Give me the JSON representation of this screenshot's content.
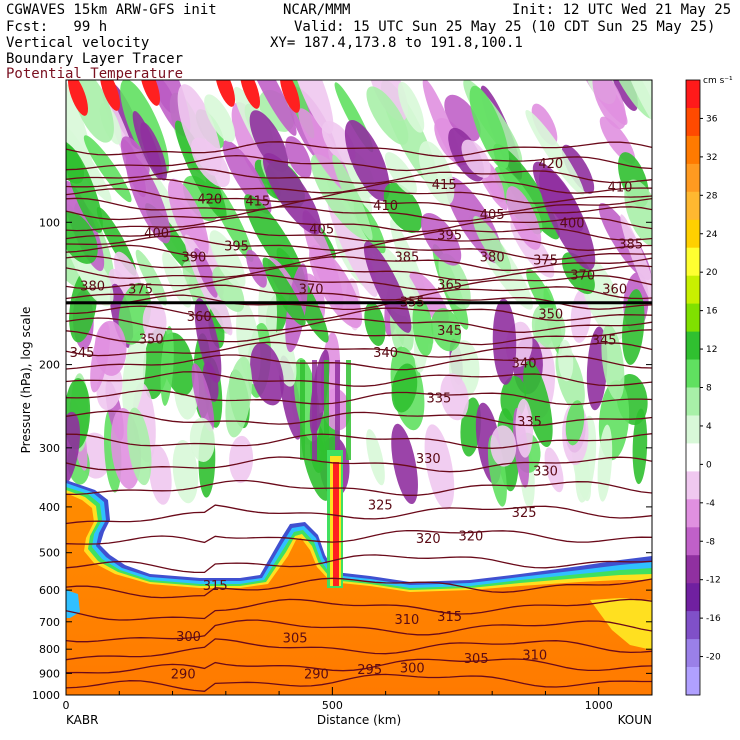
{
  "header": {
    "model": "CGWAVES 15km ARW-GFS init",
    "org": "NCAR/MMM",
    "init": "Init: 12 UTC Wed 21 May 25",
    "fcst": "Fcst:   99 h",
    "valid": "Valid: 15 UTC Sun 25 May 25 (10 CDT Sun 25 May 25)",
    "field1": "Vertical velocity",
    "field2": "Boundary Layer Tracer",
    "field3": "Potential Temperature",
    "xy": "XY= 187.4,173.8 to 191.8,100.1"
  },
  "chart_data": {
    "type": "heatmap",
    "title": "",
    "xlabel": "Distance (km)",
    "ylabel": "Pressure (hPa), log scale",
    "xlim": [
      0,
      1100
    ],
    "ylim": [
      1000,
      50
    ],
    "y_scale": "log",
    "x_ticks": [
      0,
      500,
      1000
    ],
    "y_ticks": [
      100,
      200,
      300,
      400,
      500,
      600,
      700,
      800,
      900,
      1000
    ],
    "endpoints": {
      "left": "KABR",
      "right": "KOUN"
    },
    "colorbar": {
      "unit": "cm s⁻¹",
      "ticks": [
        36,
        32,
        28,
        24,
        20,
        16,
        12,
        8,
        4,
        0,
        -4,
        -8,
        -12,
        -16,
        -20
      ],
      "colors": [
        "#ff1a1a",
        "#ff4a00",
        "#ff7a00",
        "#ff9a20",
        "#ffb830",
        "#ffd000",
        "#ffff30",
        "#c8f000",
        "#80e000",
        "#30c030",
        "#60e060",
        "#a8f0a8",
        "#d8f8d8",
        "#ffffff",
        "#f0c8f0",
        "#e090e0",
        "#c060c8",
        "#9030a0",
        "#7020a0",
        "#8050c8",
        "#9a80e8",
        "#b0a0ff"
      ]
    },
    "theta_contours": [
      {
        "label": "420",
        "x": 270,
        "p": 89
      },
      {
        "label": "415",
        "x": 360,
        "p": 90
      },
      {
        "label": "420",
        "x": 910,
        "p": 75
      },
      {
        "label": "415",
        "x": 710,
        "p": 83
      },
      {
        "label": "410",
        "x": 600,
        "p": 92
      },
      {
        "label": "410",
        "x": 1040,
        "p": 84
      },
      {
        "label": "405",
        "x": 480,
        "p": 103
      },
      {
        "label": "405",
        "x": 800,
        "p": 96
      },
      {
        "label": "400",
        "x": 170,
        "p": 105
      },
      {
        "label": "400",
        "x": 950,
        "p": 100
      },
      {
        "label": "395",
        "x": 320,
        "p": 112
      },
      {
        "label": "395",
        "x": 720,
        "p": 106
      },
      {
        "label": "390",
        "x": 240,
        "p": 118
      },
      {
        "label": "385",
        "x": 640,
        "p": 118
      },
      {
        "label": "385",
        "x": 1060,
        "p": 111
      },
      {
        "label": "380",
        "x": 50,
        "p": 136
      },
      {
        "label": "380",
        "x": 800,
        "p": 118
      },
      {
        "label": "375",
        "x": 140,
        "p": 138
      },
      {
        "label": "375",
        "x": 900,
        "p": 120
      },
      {
        "label": "370",
        "x": 460,
        "p": 138
      },
      {
        "label": "370",
        "x": 970,
        "p": 129
      },
      {
        "label": "365",
        "x": 720,
        "p": 135
      },
      {
        "label": "360",
        "x": 250,
        "p": 158
      },
      {
        "label": "360",
        "x": 1030,
        "p": 138
      },
      {
        "label": "355",
        "x": 650,
        "p": 147
      },
      {
        "label": "350",
        "x": 160,
        "p": 176
      },
      {
        "label": "350",
        "x": 910,
        "p": 156
      },
      {
        "label": "345",
        "x": 30,
        "p": 188
      },
      {
        "label": "345",
        "x": 720,
        "p": 169
      },
      {
        "label": "345",
        "x": 1010,
        "p": 177
      },
      {
        "label": "340",
        "x": 600,
        "p": 188
      },
      {
        "label": "340",
        "x": 860,
        "p": 198
      },
      {
        "label": "335",
        "x": 700,
        "p": 235
      },
      {
        "label": "335",
        "x": 870,
        "p": 263
      },
      {
        "label": "330",
        "x": 680,
        "p": 315
      },
      {
        "label": "330",
        "x": 900,
        "p": 335
      },
      {
        "label": "325",
        "x": 590,
        "p": 395
      },
      {
        "label": "325",
        "x": 860,
        "p": 410
      },
      {
        "label": "320",
        "x": 680,
        "p": 465
      },
      {
        "label": "320",
        "x": 760,
        "p": 460
      },
      {
        "label": "315",
        "x": 280,
        "p": 585
      },
      {
        "label": "315",
        "x": 720,
        "p": 680
      },
      {
        "label": "310",
        "x": 640,
        "p": 690
      },
      {
        "label": "310",
        "x": 880,
        "p": 820
      },
      {
        "label": "305",
        "x": 430,
        "p": 755
      },
      {
        "label": "305",
        "x": 770,
        "p": 835
      },
      {
        "label": "300",
        "x": 230,
        "p": 750
      },
      {
        "label": "300",
        "x": 650,
        "p": 875
      },
      {
        "label": "295",
        "x": 570,
        "p": 880
      },
      {
        "label": "290",
        "x": 220,
        "p": 900
      },
      {
        "label": "290",
        "x": 470,
        "p": 900
      }
    ]
  }
}
